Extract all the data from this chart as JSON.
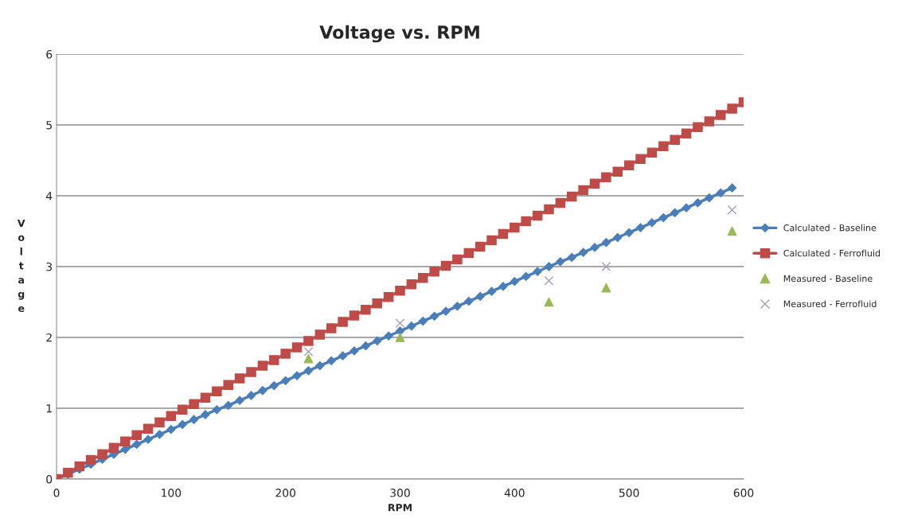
{
  "chart_data": {
    "type": "line",
    "title": "Voltage vs. RPM",
    "xlabel": "RPM",
    "ylabel": "Voltage",
    "xlim": [
      0,
      600
    ],
    "xticks": [
      0,
      100,
      200,
      300,
      400,
      500,
      600
    ],
    "ylim": [
      0,
      6
    ],
    "yticks": [
      0,
      1,
      2,
      3,
      4,
      5,
      6
    ],
    "grid": "y",
    "legend": "right",
    "series": [
      {
        "name": "Calculated - Baseline",
        "marker": "diamond",
        "color": "#4a7ebb",
        "x": [
          0,
          10,
          20,
          30,
          40,
          50,
          60,
          70,
          80,
          90,
          100,
          110,
          120,
          130,
          140,
          150,
          160,
          170,
          180,
          190,
          200,
          210,
          220,
          230,
          240,
          250,
          260,
          270,
          280,
          290,
          300,
          310,
          320,
          330,
          340,
          350,
          360,
          370,
          380,
          390,
          400,
          410,
          420,
          430,
          440,
          450,
          460,
          470,
          480,
          490,
          500,
          510,
          520,
          530,
          540,
          550,
          560,
          570,
          580,
          590
        ],
        "values": [
          0,
          0.07,
          0.14,
          0.21,
          0.28,
          0.35,
          0.42,
          0.49,
          0.56,
          0.63,
          0.7,
          0.77,
          0.84,
          0.91,
          0.98,
          1.04,
          1.11,
          1.18,
          1.25,
          1.32,
          1.39,
          1.46,
          1.53,
          1.6,
          1.67,
          1.74,
          1.81,
          1.88,
          1.95,
          2.02,
          2.09,
          2.16,
          2.23,
          2.3,
          2.37,
          2.44,
          2.51,
          2.58,
          2.65,
          2.72,
          2.79,
          2.86,
          2.93,
          3.0,
          3.07,
          3.13,
          3.2,
          3.27,
          3.34,
          3.41,
          3.48,
          3.55,
          3.62,
          3.69,
          3.76,
          3.83,
          3.9,
          3.97,
          4.04,
          4.11
        ]
      },
      {
        "name": "Calculated - Ferrofluid",
        "marker": "square",
        "color": "#be4b48",
        "x": [
          0,
          10,
          20,
          30,
          40,
          50,
          60,
          70,
          80,
          90,
          100,
          110,
          120,
          130,
          140,
          150,
          160,
          170,
          180,
          190,
          200,
          210,
          220,
          230,
          240,
          250,
          260,
          270,
          280,
          290,
          300,
          310,
          320,
          330,
          340,
          350,
          360,
          370,
          380,
          390,
          400,
          410,
          420,
          430,
          440,
          450,
          460,
          470,
          480,
          490,
          500,
          510,
          520,
          530,
          540,
          550,
          560,
          570,
          580,
          590,
          600
        ],
        "values": [
          0,
          0.09,
          0.18,
          0.27,
          0.35,
          0.44,
          0.53,
          0.62,
          0.71,
          0.8,
          0.89,
          0.98,
          1.06,
          1.15,
          1.24,
          1.33,
          1.42,
          1.51,
          1.6,
          1.68,
          1.77,
          1.86,
          1.95,
          2.04,
          2.13,
          2.22,
          2.31,
          2.39,
          2.48,
          2.57,
          2.66,
          2.75,
          2.84,
          2.93,
          3.01,
          3.1,
          3.19,
          3.28,
          3.37,
          3.46,
          3.55,
          3.64,
          3.72,
          3.81,
          3.9,
          3.99,
          4.08,
          4.17,
          4.26,
          4.34,
          4.43,
          4.52,
          4.61,
          4.7,
          4.79,
          4.88,
          4.97,
          5.05,
          5.14,
          5.23,
          5.32
        ]
      },
      {
        "name": "Measured - Baseline",
        "type": "scatter",
        "marker": "triangle",
        "color": "#98b954",
        "x": [
          220,
          300,
          430,
          480,
          590
        ],
        "values": [
          1.7,
          2.0,
          2.5,
          2.7,
          3.5
        ]
      },
      {
        "name": "Measured - Ferrofluid",
        "type": "scatter",
        "marker": "cross",
        "color": "#a99bbd",
        "x": [
          220,
          300,
          430,
          480,
          590
        ],
        "values": [
          1.8,
          2.2,
          2.8,
          3.0,
          3.8
        ]
      }
    ]
  }
}
